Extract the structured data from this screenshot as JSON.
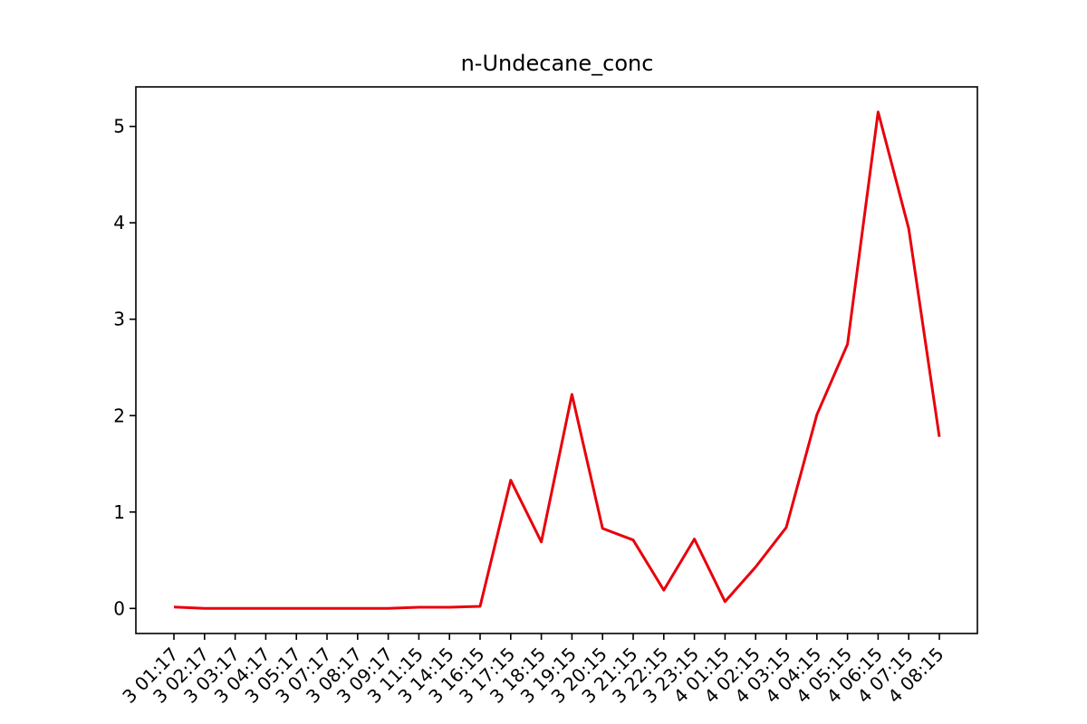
{
  "chart_data": {
    "type": "line",
    "title": "n-Undecane_conc",
    "xlabel": "",
    "ylabel": "",
    "categories": [
      "3 01:17",
      "3 02:17",
      "3 03:17",
      "3 04:17",
      "3 05:17",
      "3 07:17",
      "3 08:17",
      "3 09:17",
      "3 11:15",
      "3 14:15",
      "3 16:15",
      "3 17:15",
      "3 18:15",
      "3 19:15",
      "3 20:15",
      "3 21:15",
      "3 22:15",
      "3 23:15",
      "4 01:15",
      "4 02:15",
      "4 03:15",
      "4 04:15",
      "4 05:15",
      "4 06:15",
      "4 07:15",
      "4 08:15"
    ],
    "series": [
      {
        "color": "#e8000b",
        "values": [
          0.015,
          0.0,
          0.0,
          0.0,
          0.0,
          0.0,
          0.0,
          0.0,
          0.012,
          0.012,
          0.022,
          1.33,
          0.69,
          2.22,
          0.83,
          0.71,
          0.19,
          0.72,
          0.07,
          0.43,
          0.84,
          2.01,
          2.74,
          5.15,
          3.94,
          1.78
        ]
      }
    ],
    "ylim": [
      -0.26,
      5.41
    ],
    "yticks": [
      "0",
      "1",
      "2",
      "3",
      "4",
      "5"
    ],
    "grid": false,
    "legend": "none"
  }
}
